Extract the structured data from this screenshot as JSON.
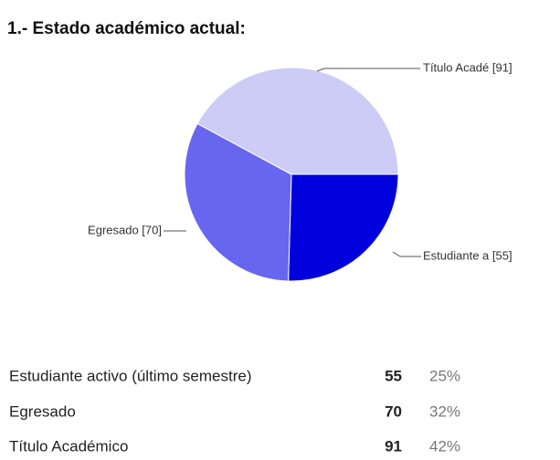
{
  "chart_data": {
    "type": "pie",
    "title": "1.- Estado académico actual:",
    "categories": [
      "Estudiante activo (último semestre)",
      "Egresado",
      "Título Académico"
    ],
    "values": [
      55,
      70,
      91
    ],
    "slice_labels": [
      "Estudiante a [55]",
      "Egresado [70]",
      "Título Acadé [91]"
    ],
    "percent_labels": [
      "25%",
      "32%",
      "42%"
    ],
    "colors": [
      "#0000dd",
      "#6666ee",
      "#ccccf7"
    ]
  }
}
